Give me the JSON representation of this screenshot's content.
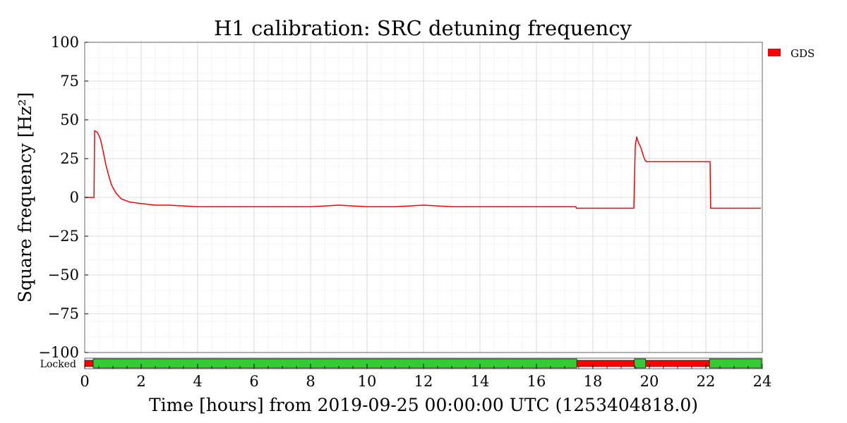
{
  "chart_data": {
    "type": "line",
    "title": "H1 calibration: SRC detuning frequency",
    "xlabel": "Time [hours] from 2019-09-25 00:00:00 UTC (1253404818.0)",
    "ylabel": "Square frequency [Hz²]",
    "xlim": [
      0,
      24
    ],
    "ylim": [
      -100,
      100
    ],
    "x_ticks": [
      "0",
      "2",
      "4",
      "6",
      "8",
      "10",
      "12",
      "14",
      "16",
      "18",
      "20",
      "22",
      "24"
    ],
    "y_ticks": [
      "100",
      "75",
      "50",
      "25",
      "0",
      "−25",
      "−50",
      "−75",
      "−100"
    ],
    "grid": true,
    "legend_position": "outside-right",
    "series": [
      {
        "name": "GDS",
        "color": "#ff0000",
        "x": [
          0,
          0.33,
          0.35,
          0.45,
          0.55,
          0.65,
          0.75,
          0.85,
          0.95,
          1.1,
          1.3,
          1.6,
          2.0,
          2.5,
          3,
          4,
          5,
          6,
          7,
          8,
          9,
          10,
          11,
          12,
          13,
          14,
          15,
          16,
          17,
          17.4,
          17.41,
          19.45,
          19.5,
          19.55,
          19.6,
          19.7,
          19.8,
          19.85,
          19.9,
          22.15,
          22.17,
          22.5,
          23,
          23.5,
          23.95
        ],
        "y": [
          0,
          0,
          43,
          42,
          38,
          30,
          21,
          14,
          8,
          3,
          -1,
          -3,
          -4,
          -5,
          -5,
          -6,
          -6,
          -6,
          -6,
          -6,
          -5,
          -6,
          -6,
          -5,
          -6,
          -6,
          -6,
          -6,
          -6,
          -6,
          -7,
          -7,
          33,
          39,
          36,
          32,
          26,
          24,
          23,
          23,
          -7,
          -7,
          -7,
          -7,
          -7
        ]
      }
    ],
    "segments": {
      "label": "Locked",
      "intervals": [
        {
          "start": 0.0,
          "end": 0.3,
          "state": "off",
          "color": "#ff0000"
        },
        {
          "start": 0.3,
          "end": 17.43,
          "state": "on",
          "color": "#33cc33"
        },
        {
          "start": 17.43,
          "end": 19.47,
          "state": "off",
          "color": "#ff0000"
        },
        {
          "start": 19.47,
          "end": 19.87,
          "state": "on",
          "color": "#33cc33"
        },
        {
          "start": 19.87,
          "end": 22.13,
          "state": "off",
          "color": "#ff0000"
        },
        {
          "start": 22.13,
          "end": 23.97,
          "state": "on",
          "color": "#33cc33"
        }
      ]
    }
  },
  "legend": {
    "entries": [
      {
        "label": "GDS",
        "color": "#ff0000"
      }
    ]
  }
}
